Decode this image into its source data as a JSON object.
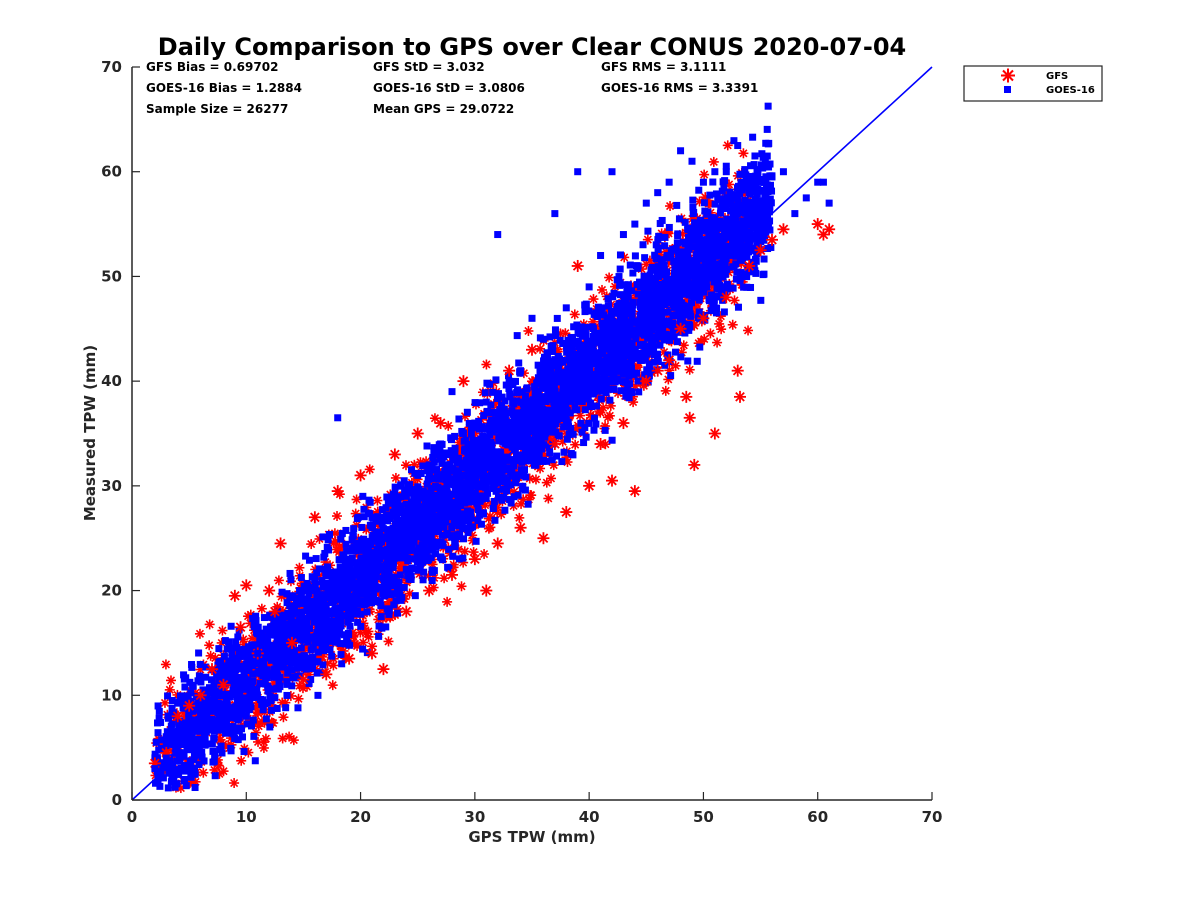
{
  "chart_data": {
    "type": "scatter",
    "title": "Daily Comparison to GPS over Clear CONUS 2020-07-04",
    "xlabel": "GPS TPW (mm)",
    "ylabel": "Measured TPW (mm)",
    "xlim": [
      0,
      70
    ],
    "ylim": [
      0,
      70
    ],
    "xticks": [
      "0",
      "10",
      "20",
      "30",
      "40",
      "50",
      "60",
      "70"
    ],
    "yticks": [
      "0",
      "10",
      "20",
      "30",
      "40",
      "50",
      "60",
      "70"
    ],
    "grid": false,
    "legend_position": "outside top-right",
    "reference_line": {
      "type": "1:1",
      "color": "#0000ff",
      "from": [
        0,
        0
      ],
      "to": [
        70,
        70
      ]
    },
    "stats": [
      [
        "GFS Bias = 0.69702",
        "GFS StD = 3.032",
        "GFS RMS = 3.1111"
      ],
      [
        "GOES-16 Bias = 1.2884",
        "GOES-16 StD = 3.0806",
        "GOES-16 RMS = 3.3391"
      ],
      [
        "Sample Size = 26277",
        "Mean GPS = 29.0722"
      ]
    ],
    "series": [
      {
        "name": "GFS",
        "marker": "asterisk",
        "color": "#ff0000",
        "bias": 0.69702,
        "std": 3.032,
        "rms": 3.1111,
        "points": [
          [
            2,
            3.5
          ],
          [
            3,
            4.5
          ],
          [
            4,
            8
          ],
          [
            5,
            9
          ],
          [
            6,
            10
          ],
          [
            7,
            12.5
          ],
          [
            8,
            11
          ],
          [
            9,
            19.5
          ],
          [
            9.5,
            16.5
          ],
          [
            10,
            20.5
          ],
          [
            11,
            14
          ],
          [
            12,
            20
          ],
          [
            12.5,
            18
          ],
          [
            13,
            24.5
          ],
          [
            14,
            15
          ],
          [
            15,
            11.5
          ],
          [
            16,
            27
          ],
          [
            17,
            12
          ],
          [
            18,
            29.5
          ],
          [
            19,
            13.5
          ],
          [
            20,
            31
          ],
          [
            21,
            14
          ],
          [
            22,
            12.5
          ],
          [
            23,
            33
          ],
          [
            24,
            18
          ],
          [
            25,
            35
          ],
          [
            26,
            20
          ],
          [
            27,
            36
          ],
          [
            28,
            21.5
          ],
          [
            29,
            40
          ],
          [
            30,
            23
          ],
          [
            31,
            20
          ],
          [
            32,
            24.5
          ],
          [
            33,
            41
          ],
          [
            34,
            26
          ],
          [
            35,
            43
          ],
          [
            36,
            25
          ],
          [
            37,
            34
          ],
          [
            38,
            27.5
          ],
          [
            39,
            51
          ],
          [
            40,
            30
          ],
          [
            41,
            34
          ],
          [
            42,
            30.5
          ],
          [
            43,
            36
          ],
          [
            44,
            29.5
          ],
          [
            45,
            40
          ],
          [
            46,
            41
          ],
          [
            47,
            42
          ],
          [
            48,
            45
          ],
          [
            48.5,
            38.5
          ],
          [
            48.8,
            36.5
          ],
          [
            49.2,
            32
          ],
          [
            50,
            46
          ],
          [
            51,
            35
          ],
          [
            52,
            48
          ],
          [
            53,
            41
          ],
          [
            53.2,
            38.5
          ],
          [
            54,
            51
          ],
          [
            55,
            52.5
          ],
          [
            56,
            53.5
          ],
          [
            57,
            54.5
          ],
          [
            60,
            55
          ],
          [
            60.5,
            54
          ],
          [
            61,
            54.5
          ]
        ]
      },
      {
        "name": "GOES-16",
        "marker": "square",
        "color": "#0000ff",
        "bias": 1.2884,
        "std": 3.0806,
        "rms": 3.3391,
        "points": [
          [
            2,
            3
          ],
          [
            3,
            4
          ],
          [
            5,
            6
          ],
          [
            6,
            8
          ],
          [
            7,
            9
          ],
          [
            8,
            10
          ],
          [
            9,
            12
          ],
          [
            10,
            13
          ],
          [
            11,
            14
          ],
          [
            12,
            16
          ],
          [
            13,
            17
          ],
          [
            14,
            18
          ],
          [
            15,
            19
          ],
          [
            16,
            20
          ],
          [
            17,
            22
          ],
          [
            18,
            36.5
          ],
          [
            19,
            23
          ],
          [
            20,
            24
          ],
          [
            21,
            26
          ],
          [
            22,
            27
          ],
          [
            23,
            28
          ],
          [
            24,
            29
          ],
          [
            25,
            31
          ],
          [
            26,
            32
          ],
          [
            27,
            34
          ],
          [
            28,
            39
          ],
          [
            29,
            35
          ],
          [
            30,
            36
          ],
          [
            31,
            38
          ],
          [
            32,
            54
          ],
          [
            33,
            40
          ],
          [
            34,
            41
          ],
          [
            35,
            46
          ],
          [
            36,
            44
          ],
          [
            37,
            56
          ],
          [
            38,
            47
          ],
          [
            39,
            60
          ],
          [
            40,
            49
          ],
          [
            41,
            52
          ],
          [
            42,
            60
          ],
          [
            43,
            54
          ],
          [
            44,
            55
          ],
          [
            45,
            57
          ],
          [
            46,
            58
          ],
          [
            47,
            59
          ],
          [
            48,
            62
          ],
          [
            49,
            61
          ],
          [
            50,
            59
          ],
          [
            51,
            60
          ],
          [
            52,
            60
          ],
          [
            53,
            62.5
          ],
          [
            54,
            58
          ],
          [
            55,
            59
          ],
          [
            56,
            59.5
          ],
          [
            57,
            60
          ],
          [
            58,
            56
          ],
          [
            59,
            57.5
          ],
          [
            60,
            59
          ],
          [
            60.5,
            59
          ],
          [
            61,
            57
          ]
        ]
      }
    ]
  }
}
